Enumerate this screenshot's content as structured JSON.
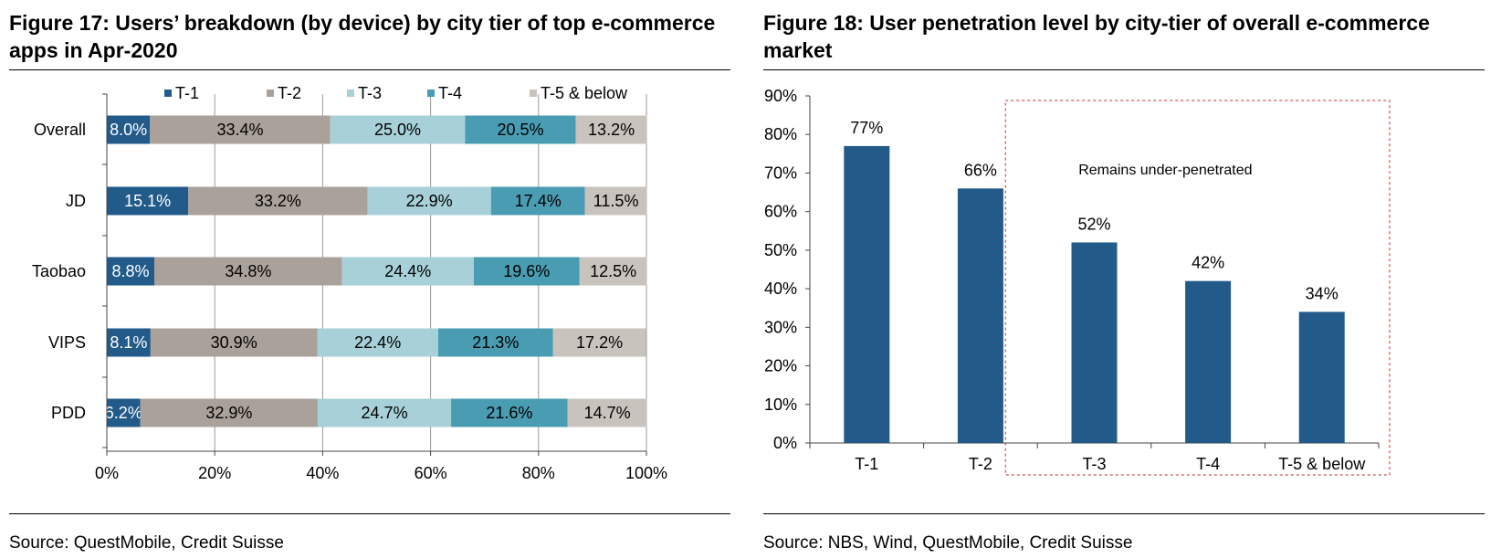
{
  "fig17": {
    "title": "Figure 17: Users’ breakdown (by device) by city tier of top e-commerce apps in Apr-2020",
    "source": "Source: QuestMobile, Credit Suisse",
    "chart_data": {
      "type": "bar",
      "orientation": "horizontal",
      "stacked": true,
      "categories": [
        "Overall",
        "JD",
        "Taobao",
        "VIPS",
        "PDD"
      ],
      "series": [
        {
          "name": "T-1",
          "color": "#225a8a",
          "values": [
            8.0,
            15.1,
            8.8,
            8.1,
            6.2
          ],
          "labels": [
            "8.0%",
            "15.1%",
            "8.8%",
            "8.1%",
            "6.2%"
          ]
        },
        {
          "name": "T-2",
          "color": "#aaa19a",
          "values": [
            33.4,
            33.2,
            34.8,
            30.9,
            32.9
          ],
          "labels": [
            "33.4%",
            "33.2%",
            "34.8%",
            "30.9%",
            "32.9%"
          ]
        },
        {
          "name": "T-3",
          "color": "#a8d0d8",
          "values": [
            25.0,
            22.9,
            24.4,
            22.4,
            24.7
          ],
          "labels": [
            "25.0%",
            "22.9%",
            "24.4%",
            "22.4%",
            "24.7%"
          ]
        },
        {
          "name": "T-4",
          "color": "#4a9cb3",
          "values": [
            20.5,
            17.4,
            19.6,
            21.3,
            21.6
          ],
          "labels": [
            "20.5%",
            "17.4%",
            "19.6%",
            "21.3%",
            "21.6%"
          ]
        },
        {
          "name": "T-5 & below",
          "color": "#c9c3be",
          "values": [
            13.2,
            11.5,
            12.5,
            17.2,
            14.7
          ],
          "labels": [
            "13.2%",
            "11.5%",
            "12.5%",
            "17.2%",
            "14.7%"
          ]
        }
      ],
      "xlim": [
        0,
        100
      ],
      "xticks": [
        0,
        20,
        40,
        60,
        80,
        100
      ],
      "xtick_labels": [
        "0%",
        "20%",
        "40%",
        "60%",
        "80%",
        "100%"
      ],
      "grid": "vertical",
      "legend": "top"
    }
  },
  "fig18": {
    "title": "Figure 18: User penetration level by city-tier of overall e-commerce market",
    "source": "Source: NBS, Wind, QuestMobile, Credit Suisse",
    "chart_data": {
      "type": "bar",
      "categories": [
        "T-1",
        "T-2",
        "T-3",
        "T-4",
        "T-5 & below"
      ],
      "values": [
        77,
        66,
        52,
        42,
        34
      ],
      "value_labels": [
        "77%",
        "66%",
        "52%",
        "42%",
        "34%"
      ],
      "color": "#225a8a",
      "ylim": [
        0,
        90
      ],
      "yticks": [
        0,
        10,
        20,
        30,
        40,
        50,
        60,
        70,
        80,
        90
      ],
      "ytick_labels": [
        "0%",
        "10%",
        "20%",
        "30%",
        "40%",
        "50%",
        "60%",
        "70%",
        "80%",
        "90%"
      ],
      "annotation": {
        "text": "Remains under-penetrated",
        "box_color": "#cc2a2a",
        "covers": [
          "T-3",
          "T-4",
          "T-5 & below"
        ]
      }
    }
  }
}
